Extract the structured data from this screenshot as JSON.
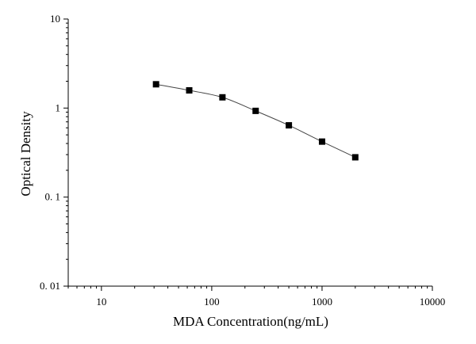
{
  "chart_data": {
    "type": "scatter",
    "xlabel": "MDA Concentration(ng/mL)",
    "ylabel": "Optical Density",
    "xscale": "log",
    "yscale": "log",
    "xlim": [
      5,
      10000
    ],
    "ylim": [
      0.01,
      10
    ],
    "x_ticks": [
      10,
      100,
      1000,
      10000
    ],
    "x_tick_labels": [
      "10",
      "100",
      "1000",
      "10000"
    ],
    "y_ticks": [
      0.01,
      0.1,
      1,
      10
    ],
    "y_tick_labels": [
      "0. 01",
      "0. 1",
      "1",
      "10"
    ],
    "grid": false,
    "fit_line": true,
    "series": [
      {
        "x": [
          31.25,
          62.5,
          125,
          250,
          500,
          1000,
          2000
        ],
        "y": [
          1.85,
          1.58,
          1.32,
          0.93,
          0.64,
          0.42,
          0.28
        ]
      }
    ]
  }
}
